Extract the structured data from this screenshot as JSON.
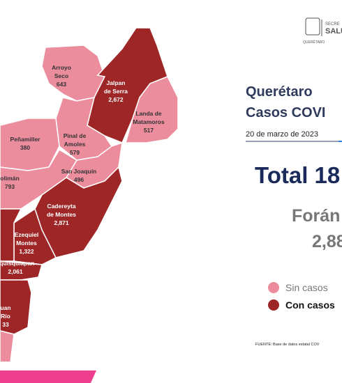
{
  "header": {
    "agency": "SECRE",
    "agency_2": "SALU",
    "state": "QUERÉTARO"
  },
  "title": {
    "line_1": "Querétaro",
    "line_2": "Casos COVI"
  },
  "date": "20 de marzo de 2023",
  "total": "Total 18",
  "foreign": {
    "label": "Forán",
    "value": "2,88"
  },
  "legend": {
    "none": "Sin casos",
    "some": "Con casos"
  },
  "source": "FUENTE: Base de datos estatal COV",
  "regions": [
    {
      "name": [
        "Arroyo",
        "Seco"
      ],
      "cases": "643"
    },
    {
      "name": [
        "Jalpan",
        "de Serra"
      ],
      "cases": "2,672"
    },
    {
      "name": [
        "Landa de",
        "Matamoros"
      ],
      "cases": "517"
    },
    {
      "name": [
        "Peñamiller"
      ],
      "cases": "380"
    },
    {
      "name": [
        "Pinal de",
        "Amoles"
      ],
      "cases": "579"
    },
    {
      "name": [
        "San Joaquín"
      ],
      "cases": "496"
    },
    {
      "name": [
        "olimán"
      ],
      "cases": "793"
    },
    {
      "name": [
        "Cadereyta",
        "de Montes"
      ],
      "cases": "2,871"
    },
    {
      "name": [
        "Ezequiel",
        "Montes"
      ],
      "cases": "1,322"
    },
    {
      "name": [
        "equisquiapan"
      ],
      "cases": "2,061"
    },
    {
      "name": [
        "uan",
        "Río"
      ],
      "cases": "33"
    }
  ]
}
